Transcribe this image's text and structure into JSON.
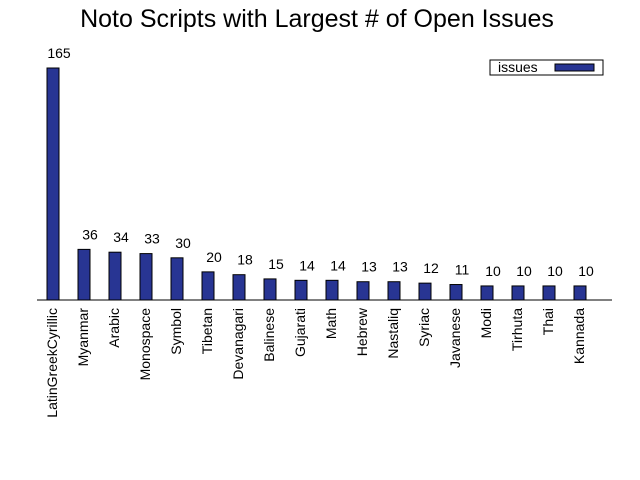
{
  "chart_data": {
    "type": "bar",
    "title": "Noto Scripts with Largest # of Open Issues",
    "xlabel": "",
    "ylabel": "",
    "ylim": [
      0,
      165
    ],
    "legend": {
      "position": "top-right",
      "label": "issues"
    },
    "categories": [
      "LatinGreekCyrillic",
      "Myanmar",
      "Arabic",
      "Monospace",
      "Symbol",
      "Tibetan",
      "Devanagari",
      "Balinese",
      "Gujarati",
      "Math",
      "Hebrew",
      "Nastaliq",
      "Syriac",
      "Javanese",
      "Modi",
      "Tirhuta",
      "Thai",
      "Kannada"
    ],
    "values": [
      165,
      36,
      34,
      33,
      30,
      20,
      18,
      15,
      14,
      14,
      13,
      13,
      12,
      11,
      10,
      10,
      10,
      10
    ],
    "series": [
      {
        "name": "issues",
        "values": [
          165,
          36,
          34,
          33,
          30,
          20,
          18,
          15,
          14,
          14,
          13,
          13,
          12,
          11,
          10,
          10,
          10,
          10
        ]
      }
    ],
    "bar_color": "#283593"
  }
}
